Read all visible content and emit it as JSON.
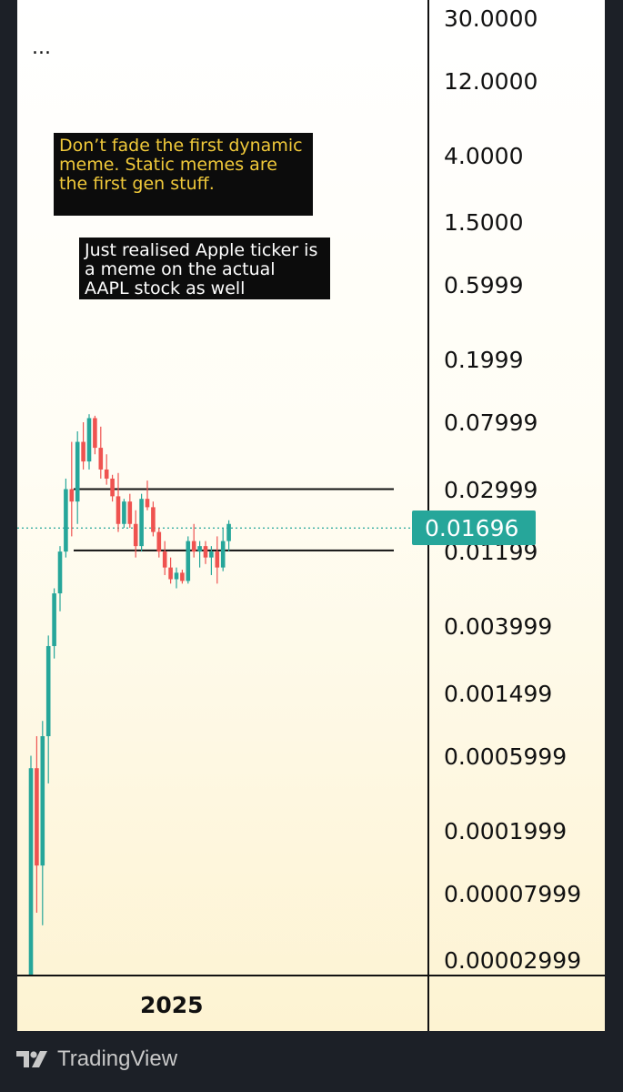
{
  "menu": {
    "dots": "..."
  },
  "annotations": [
    {
      "text": "Don’t fade the first dynamic meme. Static memes are the first gen stuff."
    },
    {
      "text": "Just realised Apple ticker is a meme on the actual AAPL stock as well"
    }
  ],
  "last_price": {
    "label": "0.01696"
  },
  "brand": {
    "name": "TradingView"
  },
  "colors": {
    "up": "#26a69a",
    "down": "#ef5350",
    "last_price_bg": "#26a69a",
    "annotation_bg": "#0c0c0c",
    "annotation_1_text": "#f0c93a"
  },
  "icons": {
    "brand_logo": "tradingview-logo-icon"
  },
  "chart_data": {
    "type": "candlestick",
    "y_scale": "log",
    "ylim": [
      2.999e-05,
      30.0
    ],
    "y_ticks": [
      "30.0000",
      "12.0000",
      "4.0000",
      "1.5000",
      "0.5999",
      "0.1999",
      "0.07999",
      "0.02999",
      "0.01199",
      "0.003999",
      "0.001499",
      "0.0005999",
      "0.0001999",
      "0.00007999",
      "0.00002999"
    ],
    "x_label": "2025",
    "last_price": 0.01696,
    "horizontal_lines": [
      0.03,
      0.0122
    ],
    "candles": [
      {
        "o": 2e-05,
        "h": 0.0006,
        "l": 1e-05,
        "c": 0.0005
      },
      {
        "o": 0.0005,
        "h": 0.0008,
        "l": 6e-05,
        "c": 0.00012
      },
      {
        "o": 0.00012,
        "h": 0.001,
        "l": 5e-05,
        "c": 0.0008
      },
      {
        "o": 0.0008,
        "h": 0.0035,
        "l": 0.0004,
        "c": 0.003
      },
      {
        "o": 0.003,
        "h": 0.007,
        "l": 0.0025,
        "c": 0.0065
      },
      {
        "o": 0.0065,
        "h": 0.013,
        "l": 0.005,
        "c": 0.012
      },
      {
        "o": 0.012,
        "h": 0.035,
        "l": 0.011,
        "c": 0.03
      },
      {
        "o": 0.03,
        "h": 0.06,
        "l": 0.015,
        "c": 0.025
      },
      {
        "o": 0.025,
        "h": 0.07,
        "l": 0.018,
        "c": 0.06
      },
      {
        "o": 0.06,
        "h": 0.08,
        "l": 0.04,
        "c": 0.045
      },
      {
        "o": 0.045,
        "h": 0.09,
        "l": 0.04,
        "c": 0.085
      },
      {
        "o": 0.085,
        "h": 0.088,
        "l": 0.05,
        "c": 0.055
      },
      {
        "o": 0.055,
        "h": 0.075,
        "l": 0.035,
        "c": 0.04
      },
      {
        "o": 0.04,
        "h": 0.05,
        "l": 0.032,
        "c": 0.035
      },
      {
        "o": 0.035,
        "h": 0.037,
        "l": 0.025,
        "c": 0.027
      },
      {
        "o": 0.027,
        "h": 0.038,
        "l": 0.016,
        "c": 0.018
      },
      {
        "o": 0.018,
        "h": 0.026,
        "l": 0.017,
        "c": 0.025
      },
      {
        "o": 0.025,
        "h": 0.028,
        "l": 0.017,
        "c": 0.018
      },
      {
        "o": 0.018,
        "h": 0.022,
        "l": 0.011,
        "c": 0.013
      },
      {
        "o": 0.013,
        "h": 0.028,
        "l": 0.012,
        "c": 0.026
      },
      {
        "o": 0.026,
        "h": 0.034,
        "l": 0.022,
        "c": 0.023
      },
      {
        "o": 0.023,
        "h": 0.025,
        "l": 0.015,
        "c": 0.016
      },
      {
        "o": 0.016,
        "h": 0.017,
        "l": 0.011,
        "c": 0.012
      },
      {
        "o": 0.012,
        "h": 0.014,
        "l": 0.0085,
        "c": 0.0095
      },
      {
        "o": 0.0095,
        "h": 0.011,
        "l": 0.0075,
        "c": 0.008
      },
      {
        "o": 0.008,
        "h": 0.0095,
        "l": 0.007,
        "c": 0.0088
      },
      {
        "o": 0.0088,
        "h": 0.0092,
        "l": 0.0075,
        "c": 0.0078
      },
      {
        "o": 0.0078,
        "h": 0.015,
        "l": 0.0075,
        "c": 0.014
      },
      {
        "o": 0.014,
        "h": 0.018,
        "l": 0.011,
        "c": 0.012
      },
      {
        "o": 0.012,
        "h": 0.014,
        "l": 0.0095,
        "c": 0.013
      },
      {
        "o": 0.013,
        "h": 0.014,
        "l": 0.01,
        "c": 0.011
      },
      {
        "o": 0.011,
        "h": 0.013,
        "l": 0.0085,
        "c": 0.012
      },
      {
        "o": 0.012,
        "h": 0.015,
        "l": 0.0075,
        "c": 0.0095
      },
      {
        "o": 0.0095,
        "h": 0.017,
        "l": 0.009,
        "c": 0.014
      },
      {
        "o": 0.014,
        "h": 0.019,
        "l": 0.012,
        "c": 0.018
      }
    ]
  }
}
